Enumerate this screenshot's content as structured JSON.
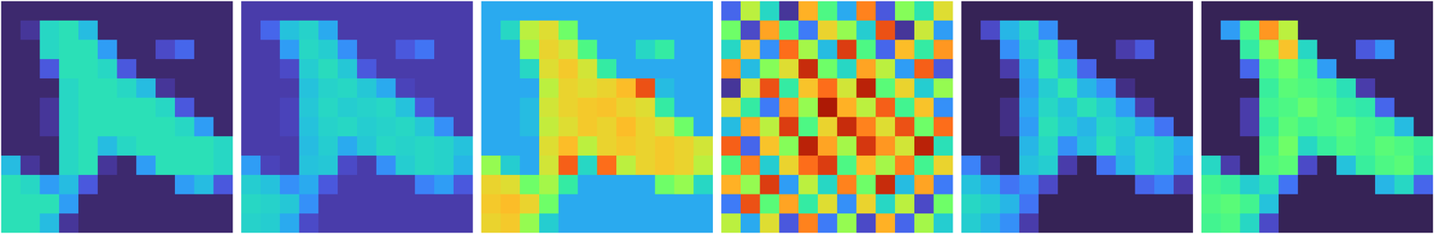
{
  "chart_data": [
    {
      "type": "heatmap",
      "tick_labels": false,
      "zlim": [
        0,
        1
      ],
      "cells": [
        [
          0.03,
          0.03,
          0.03,
          0.03,
          0.03,
          0.03,
          0.03,
          0.03,
          0.03,
          0.03,
          0.03,
          0.03
        ],
        [
          0.03,
          0.05,
          0.3,
          0.32,
          0.25,
          0.03,
          0.03,
          0.03,
          0.03,
          0.03,
          0.03,
          0.03
        ],
        [
          0.03,
          0.03,
          0.3,
          0.32,
          0.32,
          0.2,
          0.03,
          0.03,
          0.08,
          0.12,
          0.03,
          0.03
        ],
        [
          0.03,
          0.03,
          0.1,
          0.32,
          0.32,
          0.3,
          0.1,
          0.03,
          0.03,
          0.03,
          0.03,
          0.03
        ],
        [
          0.03,
          0.03,
          0.03,
          0.3,
          0.32,
          0.32,
          0.3,
          0.25,
          0.05,
          0.03,
          0.03,
          0.03
        ],
        [
          0.03,
          0.03,
          0.05,
          0.3,
          0.32,
          0.32,
          0.32,
          0.32,
          0.3,
          0.1,
          0.03,
          0.03
        ],
        [
          0.03,
          0.03,
          0.05,
          0.3,
          0.32,
          0.32,
          0.32,
          0.32,
          0.32,
          0.3,
          0.2,
          0.03
        ],
        [
          0.03,
          0.03,
          0.03,
          0.3,
          0.32,
          0.25,
          0.3,
          0.32,
          0.32,
          0.32,
          0.32,
          0.3
        ],
        [
          0.25,
          0.05,
          0.03,
          0.3,
          0.32,
          0.05,
          0.03,
          0.2,
          0.32,
          0.32,
          0.32,
          0.3
        ],
        [
          0.32,
          0.3,
          0.2,
          0.25,
          0.1,
          0.03,
          0.03,
          0.03,
          0.03,
          0.2,
          0.25,
          0.1
        ],
        [
          0.32,
          0.32,
          0.32,
          0.2,
          0.03,
          0.03,
          0.03,
          0.03,
          0.03,
          0.03,
          0.03,
          0.03
        ],
        [
          0.32,
          0.32,
          0.25,
          0.05,
          0.03,
          0.03,
          0.03,
          0.03,
          0.03,
          0.03,
          0.03,
          0.03
        ]
      ]
    },
    {
      "type": "heatmap",
      "tick_labels": false,
      "zlim": [
        0,
        1
      ],
      "cells": [
        [
          0.06,
          0.06,
          0.06,
          0.06,
          0.06,
          0.06,
          0.06,
          0.06,
          0.06,
          0.06,
          0.06,
          0.06
        ],
        [
          0.06,
          0.12,
          0.26,
          0.29,
          0.22,
          0.06,
          0.06,
          0.06,
          0.06,
          0.06,
          0.06,
          0.06
        ],
        [
          0.06,
          0.06,
          0.2,
          0.3,
          0.28,
          0.18,
          0.06,
          0.06,
          0.1,
          0.14,
          0.06,
          0.06
        ],
        [
          0.06,
          0.06,
          0.08,
          0.28,
          0.31,
          0.27,
          0.1,
          0.06,
          0.06,
          0.06,
          0.06,
          0.06
        ],
        [
          0.06,
          0.06,
          0.06,
          0.26,
          0.29,
          0.3,
          0.27,
          0.22,
          0.07,
          0.06,
          0.06,
          0.06
        ],
        [
          0.06,
          0.06,
          0.07,
          0.27,
          0.3,
          0.28,
          0.29,
          0.3,
          0.26,
          0.1,
          0.06,
          0.06
        ],
        [
          0.06,
          0.06,
          0.07,
          0.26,
          0.29,
          0.3,
          0.28,
          0.29,
          0.3,
          0.27,
          0.18,
          0.06
        ],
        [
          0.06,
          0.06,
          0.06,
          0.25,
          0.28,
          0.22,
          0.27,
          0.3,
          0.29,
          0.3,
          0.29,
          0.26
        ],
        [
          0.2,
          0.07,
          0.06,
          0.26,
          0.27,
          0.08,
          0.06,
          0.18,
          0.28,
          0.3,
          0.29,
          0.24
        ],
        [
          0.28,
          0.26,
          0.18,
          0.22,
          0.1,
          0.06,
          0.06,
          0.06,
          0.06,
          0.16,
          0.2,
          0.1
        ],
        [
          0.3,
          0.29,
          0.27,
          0.18,
          0.06,
          0.06,
          0.06,
          0.06,
          0.06,
          0.06,
          0.06,
          0.06
        ],
        [
          0.29,
          0.28,
          0.22,
          0.08,
          0.06,
          0.06,
          0.06,
          0.06,
          0.06,
          0.06,
          0.06,
          0.06
        ]
      ]
    },
    {
      "type": "heatmap",
      "tick_labels": false,
      "zlim": [
        0,
        1
      ],
      "cells": [
        [
          0.22,
          0.22,
          0.22,
          0.22,
          0.22,
          0.22,
          0.22,
          0.22,
          0.22,
          0.22,
          0.22,
          0.22
        ],
        [
          0.22,
          0.3,
          0.55,
          0.6,
          0.45,
          0.22,
          0.22,
          0.22,
          0.22,
          0.22,
          0.22,
          0.22
        ],
        [
          0.22,
          0.22,
          0.5,
          0.62,
          0.58,
          0.4,
          0.22,
          0.22,
          0.3,
          0.35,
          0.22,
          0.22
        ],
        [
          0.22,
          0.22,
          0.3,
          0.6,
          0.64,
          0.58,
          0.35,
          0.22,
          0.22,
          0.22,
          0.22,
          0.22
        ],
        [
          0.22,
          0.22,
          0.22,
          0.55,
          0.62,
          0.6,
          0.62,
          0.66,
          0.82,
          0.25,
          0.22,
          0.22
        ],
        [
          0.22,
          0.22,
          0.25,
          0.58,
          0.62,
          0.64,
          0.65,
          0.62,
          0.6,
          0.35,
          0.22,
          0.22
        ],
        [
          0.22,
          0.22,
          0.25,
          0.56,
          0.6,
          0.64,
          0.62,
          0.66,
          0.62,
          0.58,
          0.45,
          0.22
        ],
        [
          0.22,
          0.22,
          0.22,
          0.6,
          0.66,
          0.55,
          0.62,
          0.64,
          0.62,
          0.64,
          0.62,
          0.58
        ],
        [
          0.5,
          0.28,
          0.22,
          0.58,
          0.8,
          0.3,
          0.78,
          0.55,
          0.62,
          0.64,
          0.62,
          0.55
        ],
        [
          0.62,
          0.6,
          0.45,
          0.52,
          0.35,
          0.22,
          0.22,
          0.22,
          0.22,
          0.45,
          0.5,
          0.3
        ],
        [
          0.64,
          0.66,
          0.62,
          0.45,
          0.22,
          0.22,
          0.22,
          0.22,
          0.22,
          0.22,
          0.22,
          0.22
        ],
        [
          0.62,
          0.64,
          0.5,
          0.28,
          0.22,
          0.22,
          0.22,
          0.22,
          0.22,
          0.22,
          0.22,
          0.22
        ]
      ]
    },
    {
      "type": "heatmap",
      "tick_labels": false,
      "zlim": [
        0,
        1
      ],
      "cells": [
        [
          0.12,
          0.55,
          0.3,
          0.05,
          0.68,
          0.4,
          0.22,
          0.75,
          0.1,
          0.48,
          0.33,
          0.6
        ],
        [
          0.45,
          0.08,
          0.7,
          0.38,
          0.15,
          0.62,
          0.5,
          0.28,
          0.82,
          0.05,
          0.57,
          0.2
        ],
        [
          0.3,
          0.65,
          0.18,
          0.78,
          0.52,
          0.25,
          0.85,
          0.4,
          0.12,
          0.66,
          0.35,
          0.72
        ],
        [
          0.72,
          0.25,
          0.48,
          0.6,
          0.88,
          0.45,
          0.3,
          0.7,
          0.55,
          0.2,
          0.8,
          0.1
        ],
        [
          0.05,
          0.58,
          0.82,
          0.35,
          0.65,
          0.78,
          0.58,
          0.9,
          0.42,
          0.62,
          0.28,
          0.5
        ],
        [
          0.6,
          0.35,
          0.15,
          0.72,
          0.5,
          0.92,
          0.68,
          0.55,
          0.8,
          0.38,
          0.65,
          0.18
        ],
        [
          0.25,
          0.7,
          0.55,
          0.85,
          0.4,
          0.62,
          0.88,
          0.75,
          0.6,
          0.82,
          0.45,
          0.78
        ],
        [
          0.8,
          0.12,
          0.65,
          0.48,
          0.9,
          0.7,
          0.52,
          0.86,
          0.72,
          0.58,
          0.9,
          0.32
        ],
        [
          0.4,
          0.75,
          0.28,
          0.62,
          0.78,
          0.85,
          0.4,
          0.66,
          0.52,
          0.75,
          0.38,
          0.62
        ],
        [
          0.68,
          0.5,
          0.85,
          0.2,
          0.55,
          0.3,
          0.75,
          0.45,
          0.88,
          0.25,
          0.7,
          0.15
        ],
        [
          0.15,
          0.82,
          0.42,
          0.7,
          0.35,
          0.6,
          0.18,
          0.62,
          0.3,
          0.55,
          0.08,
          0.45
        ],
        [
          0.55,
          0.22,
          0.6,
          0.1,
          0.75,
          0.15,
          0.5,
          0.08,
          0.68,
          0.12,
          0.52,
          0.28
        ]
      ]
    },
    {
      "type": "heatmap",
      "tick_labels": false,
      "zlim": [
        0,
        1
      ],
      "cells": [
        [
          0.02,
          0.02,
          0.02,
          0.02,
          0.02,
          0.02,
          0.02,
          0.02,
          0.02,
          0.02,
          0.02,
          0.02
        ],
        [
          0.02,
          0.08,
          0.24,
          0.3,
          0.18,
          0.02,
          0.02,
          0.02,
          0.02,
          0.02,
          0.02,
          0.02
        ],
        [
          0.02,
          0.02,
          0.18,
          0.28,
          0.32,
          0.16,
          0.02,
          0.02,
          0.06,
          0.1,
          0.02,
          0.02
        ],
        [
          0.02,
          0.02,
          0.06,
          0.22,
          0.34,
          0.26,
          0.12,
          0.02,
          0.02,
          0.02,
          0.02,
          0.02
        ],
        [
          0.02,
          0.02,
          0.02,
          0.2,
          0.28,
          0.34,
          0.24,
          0.18,
          0.04,
          0.02,
          0.02,
          0.02
        ],
        [
          0.02,
          0.02,
          0.04,
          0.22,
          0.3,
          0.26,
          0.32,
          0.28,
          0.2,
          0.06,
          0.02,
          0.02
        ],
        [
          0.02,
          0.02,
          0.04,
          0.2,
          0.32,
          0.28,
          0.24,
          0.3,
          0.28,
          0.22,
          0.14,
          0.02
        ],
        [
          0.02,
          0.02,
          0.02,
          0.24,
          0.3,
          0.18,
          0.26,
          0.32,
          0.26,
          0.3,
          0.28,
          0.22
        ],
        [
          0.16,
          0.04,
          0.02,
          0.26,
          0.28,
          0.06,
          0.02,
          0.14,
          0.24,
          0.3,
          0.28,
          0.2
        ],
        [
          0.26,
          0.22,
          0.14,
          0.18,
          0.08,
          0.02,
          0.02,
          0.02,
          0.02,
          0.12,
          0.16,
          0.06
        ],
        [
          0.3,
          0.28,
          0.24,
          0.14,
          0.02,
          0.02,
          0.02,
          0.02,
          0.02,
          0.02,
          0.02,
          0.02
        ],
        [
          0.28,
          0.24,
          0.18,
          0.06,
          0.02,
          0.02,
          0.02,
          0.02,
          0.02,
          0.02,
          0.02,
          0.02
        ]
      ]
    },
    {
      "type": "heatmap",
      "tick_labels": false,
      "zlim": [
        0,
        1
      ],
      "cells": [
        [
          0.02,
          0.02,
          0.02,
          0.02,
          0.02,
          0.02,
          0.02,
          0.02,
          0.02,
          0.02,
          0.02,
          0.02
        ],
        [
          0.02,
          0.2,
          0.4,
          0.72,
          0.55,
          0.02,
          0.02,
          0.02,
          0.02,
          0.02,
          0.02,
          0.02
        ],
        [
          0.02,
          0.02,
          0.35,
          0.48,
          0.65,
          0.3,
          0.02,
          0.02,
          0.1,
          0.18,
          0.02,
          0.02
        ],
        [
          0.02,
          0.02,
          0.12,
          0.4,
          0.45,
          0.38,
          0.2,
          0.02,
          0.02,
          0.02,
          0.02,
          0.02
        ],
        [
          0.02,
          0.02,
          0.02,
          0.36,
          0.42,
          0.4,
          0.38,
          0.32,
          0.06,
          0.02,
          0.02,
          0.02
        ],
        [
          0.02,
          0.02,
          0.06,
          0.38,
          0.4,
          0.44,
          0.4,
          0.36,
          0.34,
          0.12,
          0.02,
          0.02
        ],
        [
          0.02,
          0.02,
          0.06,
          0.35,
          0.42,
          0.38,
          0.4,
          0.42,
          0.38,
          0.36,
          0.25,
          0.02
        ],
        [
          0.02,
          0.02,
          0.02,
          0.38,
          0.45,
          0.3,
          0.36,
          0.4,
          0.38,
          0.42,
          0.4,
          0.36
        ],
        [
          0.3,
          0.06,
          0.02,
          0.4,
          0.42,
          0.08,
          0.02,
          0.26,
          0.36,
          0.4,
          0.42,
          0.34
        ],
        [
          0.38,
          0.36,
          0.28,
          0.32,
          0.14,
          0.02,
          0.02,
          0.02,
          0.02,
          0.24,
          0.3,
          0.12
        ],
        [
          0.4,
          0.42,
          0.38,
          0.26,
          0.02,
          0.02,
          0.02,
          0.02,
          0.02,
          0.02,
          0.02,
          0.02
        ],
        [
          0.38,
          0.4,
          0.3,
          0.08,
          0.02,
          0.02,
          0.02,
          0.02,
          0.02,
          0.02,
          0.02,
          0.02
        ]
      ]
    }
  ]
}
